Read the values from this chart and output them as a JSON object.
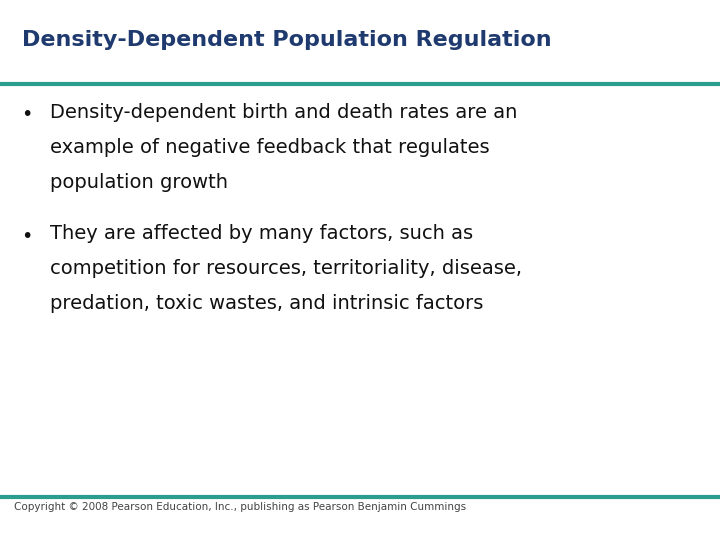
{
  "title": "Density-Dependent Population Regulation",
  "title_color": "#1F3A6E",
  "title_fontsize": 16,
  "line_color": "#2A9D8F",
  "line_thickness": 3,
  "bullet1_line1": "Density-dependent birth and death rates are an",
  "bullet1_line2": "example of negative feedback that regulates",
  "bullet1_line3": "population growth",
  "bullet2_line1": "They are affected by many factors, such as",
  "bullet2_line2": "competition for resources, territoriality, disease,",
  "bullet2_line3": "predation, toxic wastes, and intrinsic factors",
  "bullet_color": "#111111",
  "bullet_fontsize": 14,
  "bullet_symbol": "•",
  "copyright": "Copyright © 2008 Pearson Education, Inc., publishing as Pearson Benjamin Cummings",
  "copyright_fontsize": 7.5,
  "copyright_color": "#444444",
  "bg_color": "#FFFFFF",
  "bottom_line_color": "#2A9D8F"
}
